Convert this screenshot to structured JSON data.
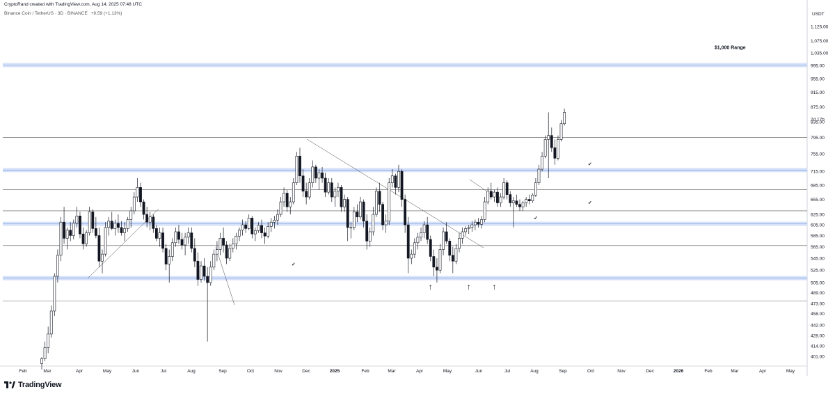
{
  "header": {
    "attribution": "CryptoRand created with TradingView.com, Aug 14, 2025 07:48 UTC",
    "symbol_line": "Binance Coin / TetherUS · 3D · BINANCE",
    "change": "+9.59 (+1.13%)"
  },
  "logo": {
    "text": "TradingView",
    "icon": "tradingview-logo-icon"
  },
  "chart_data": {
    "type": "candlestick",
    "title": "",
    "currency_label": "USDT",
    "countdown_label": "2d 17h",
    "y_ticks": [
      1125,
      1075,
      1035,
      995,
      955,
      915,
      875,
      835,
      795,
      755,
      715,
      685,
      655,
      625,
      605,
      585,
      565,
      545,
      525,
      505,
      489,
      473,
      458,
      442,
      428,
      414,
      401
    ],
    "y_tick_labels": [
      "1,125.00",
      "1,075.00",
      "1,035.00",
      "995.00",
      "955.00",
      "915.00",
      "875.00",
      "835.00",
      "795.00",
      "755.00",
      "715.00",
      "685.00",
      "655.00",
      "625.00",
      "605.00",
      "585.00",
      "565.00",
      "545.00",
      "525.00",
      "505.00",
      "489.00",
      "473.00",
      "458.00",
      "442.00",
      "428.00",
      "414.00",
      "401.00"
    ],
    "x_ticks": [
      {
        "label": "Feb",
        "year": false
      },
      {
        "label": "Mar",
        "year": false
      },
      {
        "label": "Apr",
        "year": false
      },
      {
        "label": "May",
        "year": false
      },
      {
        "label": "Jun",
        "year": false
      },
      {
        "label": "Jul",
        "year": false
      },
      {
        "label": "Aug",
        "year": false
      },
      {
        "label": "Sep",
        "year": false
      },
      {
        "label": "Oct",
        "year": false
      },
      {
        "label": "Nov",
        "year": false
      },
      {
        "label": "Dec",
        "year": false
      },
      {
        "label": "2025",
        "year": true
      },
      {
        "label": "Feb",
        "year": false
      },
      {
        "label": "Mar",
        "year": false
      },
      {
        "label": "Apr",
        "year": false
      },
      {
        "label": "May",
        "year": false
      },
      {
        "label": "Jun",
        "year": false
      },
      {
        "label": "Jul",
        "year": false
      },
      {
        "label": "Aug",
        "year": false
      },
      {
        "label": "Sep",
        "year": false
      },
      {
        "label": "Oct",
        "year": false
      },
      {
        "label": "Nov",
        "year": false
      },
      {
        "label": "Dec",
        "year": false
      },
      {
        "label": "2026",
        "year": true
      },
      {
        "label": "Feb",
        "year": false
      },
      {
        "label": "Mar",
        "year": false
      },
      {
        "label": "Apr",
        "year": false
      },
      {
        "label": "May",
        "year": false
      }
    ],
    "horizontal_levels": [
      {
        "price": 997,
        "style": "zone"
      },
      {
        "price": 795,
        "style": "line"
      },
      {
        "price": 718,
        "style": "zone"
      },
      {
        "price": 675,
        "style": "line"
      },
      {
        "price": 632,
        "style": "line"
      },
      {
        "price": 607,
        "style": "zone"
      },
      {
        "price": 567,
        "style": "line"
      },
      {
        "price": 512,
        "style": "zone"
      },
      {
        "price": 477,
        "style": "line"
      }
    ],
    "annotations": [
      {
        "text": "$1,000 Range",
        "kind": "label",
        "t": 216,
        "price": 1048
      },
      {
        "text": "×",
        "kind": "cross",
        "t": 47,
        "price": 582
      },
      {
        "text": "✓",
        "kind": "check",
        "t": 79,
        "price": 532
      },
      {
        "text": "✓",
        "kind": "check",
        "t": 155,
        "price": 615
      },
      {
        "text": "✓",
        "kind": "check",
        "t": 172,
        "price": 728
      },
      {
        "text": "✓",
        "kind": "check",
        "t": 172,
        "price": 645
      },
      {
        "text": "↑",
        "kind": "arrow",
        "t": 122,
        "price": 494
      },
      {
        "text": "↑",
        "kind": "arrow",
        "t": 134,
        "price": 494
      },
      {
        "text": "↑",
        "kind": "arrow",
        "t": 142,
        "price": 494
      }
    ],
    "candles": [
      [
        392,
        400,
        385,
        398
      ],
      [
        398,
        420,
        395,
        412
      ],
      [
        412,
        440,
        405,
        430
      ],
      [
        430,
        470,
        425,
        462
      ],
      [
        462,
        520,
        455,
        515
      ],
      [
        515,
        560,
        505,
        550
      ],
      [
        550,
        620,
        540,
        610
      ],
      [
        610,
        640,
        570,
        580
      ],
      [
        580,
        600,
        560,
        595
      ],
      [
        595,
        610,
        575,
        585
      ],
      [
        585,
        615,
        578,
        608
      ],
      [
        608,
        640,
        600,
        622
      ],
      [
        622,
        630,
        580,
        588
      ],
      [
        588,
        600,
        560,
        570
      ],
      [
        570,
        595,
        565,
        590
      ],
      [
        590,
        640,
        585,
        630
      ],
      [
        630,
        635,
        590,
        598
      ],
      [
        598,
        620,
        580,
        585
      ],
      [
        585,
        600,
        530,
        540
      ],
      [
        540,
        560,
        520,
        552
      ],
      [
        552,
        610,
        548,
        600
      ],
      [
        600,
        620,
        585,
        612
      ],
      [
        612,
        630,
        595,
        598
      ],
      [
        598,
        615,
        585,
        608
      ],
      [
        608,
        625,
        590,
        600
      ],
      [
        600,
        612,
        585,
        590
      ],
      [
        590,
        610,
        575,
        598
      ],
      [
        598,
        620,
        592,
        615
      ],
      [
        615,
        640,
        600,
        632
      ],
      [
        632,
        670,
        625,
        660
      ],
      [
        660,
        700,
        650,
        680
      ],
      [
        680,
        690,
        640,
        650
      ],
      [
        650,
        655,
        615,
        625
      ],
      [
        625,
        640,
        600,
        610
      ],
      [
        610,
        630,
        595,
        620
      ],
      [
        620,
        625,
        590,
        598
      ],
      [
        598,
        605,
        575,
        580
      ],
      [
        580,
        600,
        565,
        590
      ],
      [
        590,
        600,
        555,
        562
      ],
      [
        562,
        570,
        525,
        535
      ],
      [
        535,
        560,
        505,
        548
      ],
      [
        548,
        580,
        540,
        572
      ],
      [
        572,
        600,
        565,
        592
      ],
      [
        592,
        605,
        570,
        578
      ],
      [
        578,
        590,
        560,
        568
      ],
      [
        568,
        590,
        550,
        582
      ],
      [
        582,
        600,
        570,
        590
      ],
      [
        590,
        600,
        555,
        562
      ],
      [
        562,
        580,
        530,
        540
      ],
      [
        540,
        555,
        500,
        510
      ],
      [
        510,
        540,
        505,
        532
      ],
      [
        532,
        545,
        508,
        515
      ],
      [
        515,
        530,
        420,
        505
      ],
      [
        505,
        540,
        500,
        530
      ],
      [
        530,
        560,
        525,
        552
      ],
      [
        552,
        575,
        540,
        560
      ],
      [
        560,
        590,
        550,
        580
      ],
      [
        580,
        600,
        555,
        568
      ],
      [
        568,
        575,
        535,
        545
      ],
      [
        545,
        570,
        540,
        562
      ],
      [
        562,
        580,
        555,
        570
      ],
      [
        570,
        590,
        560,
        584
      ],
      [
        584,
        600,
        575,
        595
      ],
      [
        595,
        615,
        585,
        605
      ],
      [
        605,
        612,
        590,
        598
      ],
      [
        598,
        625,
        595,
        618
      ],
      [
        618,
        622,
        580,
        588
      ],
      [
        588,
        600,
        575,
        594
      ],
      [
        594,
        610,
        590,
        604
      ],
      [
        604,
        615,
        580,
        590
      ],
      [
        590,
        600,
        570,
        584
      ],
      [
        584,
        610,
        580,
        602
      ],
      [
        602,
        618,
        592,
        610
      ],
      [
        610,
        622,
        598,
        614
      ],
      [
        614,
        635,
        605,
        625
      ],
      [
        625,
        660,
        620,
        650
      ],
      [
        650,
        680,
        640,
        668
      ],
      [
        668,
        675,
        630,
        640
      ],
      [
        640,
        660,
        625,
        650
      ],
      [
        650,
        700,
        645,
        690
      ],
      [
        690,
        760,
        685,
        750
      ],
      [
        750,
        770,
        690,
        705
      ],
      [
        705,
        720,
        660,
        672
      ],
      [
        672,
        690,
        645,
        660
      ],
      [
        660,
        700,
        655,
        690
      ],
      [
        690,
        740,
        680,
        725
      ],
      [
        725,
        730,
        690,
        700
      ],
      [
        700,
        720,
        675,
        712
      ],
      [
        712,
        725,
        690,
        700
      ],
      [
        700,
        712,
        660,
        670
      ],
      [
        670,
        700,
        665,
        690
      ],
      [
        690,
        700,
        650,
        660
      ],
      [
        660,
        680,
        640,
        672
      ],
      [
        672,
        690,
        660,
        680
      ],
      [
        680,
        685,
        630,
        640
      ],
      [
        640,
        665,
        630,
        655
      ],
      [
        655,
        660,
        575,
        600
      ],
      [
        600,
        610,
        580,
        600
      ],
      [
        600,
        640,
        595,
        630
      ],
      [
        630,
        645,
        610,
        620
      ],
      [
        620,
        660,
        615,
        650
      ],
      [
        650,
        655,
        600,
        612
      ],
      [
        612,
        625,
        560,
        575
      ],
      [
        575,
        600,
        565,
        592
      ],
      [
        592,
        640,
        585,
        625
      ],
      [
        625,
        680,
        620,
        672
      ],
      [
        672,
        690,
        630,
        645
      ],
      [
        645,
        650,
        595,
        605
      ],
      [
        605,
        625,
        590,
        612
      ],
      [
        612,
        700,
        605,
        690
      ],
      [
        690,
        720,
        680,
        705
      ],
      [
        705,
        710,
        665,
        680
      ],
      [
        680,
        730,
        670,
        715
      ],
      [
        715,
        720,
        640,
        655
      ],
      [
        655,
        665,
        590,
        605
      ],
      [
        605,
        620,
        520,
        545
      ],
      [
        545,
        560,
        535,
        552
      ],
      [
        552,
        580,
        545,
        572
      ],
      [
        572,
        590,
        560,
        582
      ],
      [
        582,
        600,
        575,
        590
      ],
      [
        590,
        612,
        580,
        605
      ],
      [
        605,
        620,
        570,
        578
      ],
      [
        578,
        585,
        540,
        548
      ],
      [
        548,
        560,
        515,
        530
      ],
      [
        530,
        545,
        505,
        525
      ],
      [
        525,
        570,
        520,
        560
      ],
      [
        560,
        600,
        550,
        592
      ],
      [
        592,
        610,
        570,
        575
      ],
      [
        575,
        580,
        540,
        550
      ],
      [
        550,
        565,
        520,
        540
      ],
      [
        540,
        570,
        535,
        562
      ],
      [
        562,
        590,
        555,
        580
      ],
      [
        580,
        600,
        570,
        592
      ],
      [
        592,
        602,
        585,
        598
      ],
      [
        598,
        605,
        588,
        600
      ],
      [
        600,
        612,
        592,
        605
      ],
      [
        605,
        615,
        595,
        610
      ],
      [
        610,
        618,
        600,
        606
      ],
      [
        606,
        622,
        598,
        615
      ],
      [
        615,
        660,
        610,
        650
      ],
      [
        650,
        680,
        645,
        672
      ],
      [
        672,
        690,
        655,
        660
      ],
      [
        660,
        675,
        650,
        670
      ],
      [
        670,
        680,
        640,
        648
      ],
      [
        648,
        668,
        640,
        660
      ],
      [
        660,
        700,
        655,
        690
      ],
      [
        690,
        695,
        655,
        665
      ],
      [
        665,
        672,
        640,
        648
      ],
      [
        648,
        660,
        600,
        652
      ],
      [
        652,
        665,
        640,
        645
      ],
      [
        645,
        655,
        632,
        640
      ],
      [
        640,
        652,
        632,
        648
      ],
      [
        648,
        660,
        640,
        655
      ],
      [
        655,
        665,
        645,
        652
      ],
      [
        652,
        668,
        648,
        664
      ],
      [
        664,
        700,
        660,
        690
      ],
      [
        690,
        730,
        685,
        720
      ],
      [
        720,
        760,
        715,
        750
      ],
      [
        750,
        800,
        745,
        790
      ],
      [
        790,
        860,
        700,
        800
      ],
      [
        800,
        820,
        760,
        770
      ],
      [
        770,
        790,
        730,
        745
      ],
      [
        745,
        800,
        740,
        790
      ],
      [
        790,
        840,
        785,
        830
      ],
      [
        830,
        870,
        825,
        860
      ]
    ]
  }
}
